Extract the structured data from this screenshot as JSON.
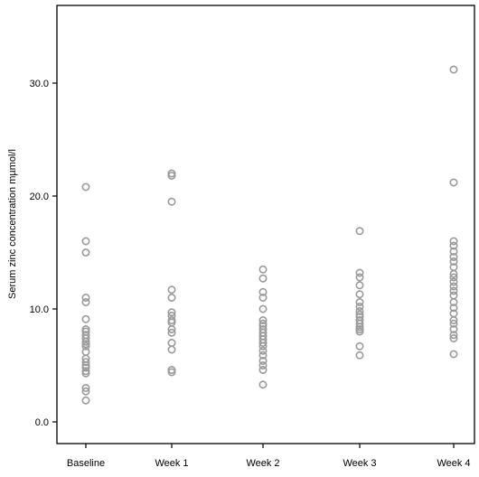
{
  "chart_data": {
    "type": "scatter",
    "title": "",
    "xlabel": "",
    "ylabel": "Serum zinc concentration mµmol/l",
    "categories": [
      "Baseline",
      "Week 1",
      "Week 2",
      "Week 3",
      "Week 4"
    ],
    "ylim": [
      -2,
      37
    ],
    "yticks": [
      0.0,
      10.0,
      20.0,
      30.0
    ],
    "ytick_labels": [
      "0.0",
      "10.0",
      "20.0",
      "30.0"
    ],
    "grid": false,
    "marker": "open-circle",
    "marker_color": "#9a9a9a",
    "series": [
      {
        "category": "Baseline",
        "values": [
          20.8,
          16.0,
          15.0,
          11.0,
          10.6,
          9.1,
          8.2,
          8.0,
          7.7,
          7.4,
          7.1,
          6.9,
          6.7,
          6.2,
          5.6,
          5.3,
          5.0,
          4.8,
          4.5,
          4.3,
          3.0,
          2.7,
          1.9
        ]
      },
      {
        "category": "Week 1",
        "values": [
          22.0,
          21.8,
          19.5,
          11.7,
          11.0,
          9.7,
          9.4,
          9.0,
          8.8,
          8.2,
          7.9,
          7.0,
          6.4,
          4.6,
          4.4
        ]
      },
      {
        "category": "Week 2",
        "values": [
          13.5,
          12.7,
          11.5,
          11.0,
          10.0,
          9.0,
          8.7,
          8.5,
          8.2,
          7.9,
          7.6,
          7.3,
          7.0,
          6.7,
          6.3,
          5.9,
          5.4,
          5.0,
          4.6,
          3.3
        ]
      },
      {
        "category": "Week 3",
        "values": [
          16.9,
          13.2,
          12.8,
          12.1,
          11.3,
          10.6,
          10.2,
          9.8,
          9.5,
          9.3,
          9.0,
          8.7,
          8.4,
          8.2,
          8.0,
          6.7,
          5.9
        ]
      },
      {
        "category": "Week 4",
        "values": [
          31.2,
          21.2,
          16.0,
          15.6,
          15.1,
          14.6,
          14.2,
          13.7,
          13.1,
          12.8,
          12.4,
          12.0,
          11.6,
          11.2,
          10.6,
          10.1,
          9.6,
          9.0,
          8.7,
          8.2,
          7.7,
          7.4,
          6.0
        ]
      }
    ]
  }
}
